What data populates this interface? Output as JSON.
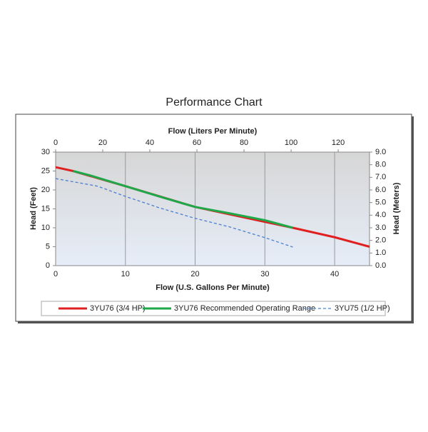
{
  "chart_data": {
    "type": "line",
    "title": "Performance Chart",
    "xlabel": "Flow (U.S. Gallons Per Minute)",
    "x2label": "Flow (Liters Per Minute)",
    "ylabel": "Head (Feet)",
    "y2label": "Head (Meters)",
    "xlim": [
      0,
      45
    ],
    "xticks": [
      0,
      10,
      20,
      30,
      40
    ],
    "x2lim": [
      0,
      133.3
    ],
    "x2ticks": [
      0,
      20,
      40,
      60,
      80,
      100,
      120
    ],
    "ylim": [
      0,
      30
    ],
    "yticks": [
      0,
      5,
      10,
      15,
      20,
      25,
      30
    ],
    "y2lim": [
      0,
      9
    ],
    "y2ticks": [
      {
        "value": 0,
        "label": "0.0"
      },
      {
        "value": 1,
        "label": "1.0"
      },
      {
        "value": 2,
        "label": "2.0"
      },
      {
        "value": 3,
        "label": "3.0"
      },
      {
        "value": 4,
        "label": "4.0"
      },
      {
        "value": 5,
        "label": "5.0"
      },
      {
        "value": 6,
        "label": "6.0"
      },
      {
        "value": 7,
        "label": "7.0"
      },
      {
        "value": 8,
        "label": "8.0"
      },
      {
        "value": 9,
        "label": "9.0"
      }
    ],
    "grid": true,
    "series": [
      {
        "name": "3YU76 (3/4 HP)",
        "color": "#e02020",
        "style": "solid",
        "x": [
          0,
          2.5,
          10,
          20,
          34,
          40,
          45
        ],
        "values": [
          26,
          25,
          21,
          15.5,
          10,
          7.5,
          5
        ]
      },
      {
        "name": "3YU76 Recommended Operating Range",
        "color": "#1fa84a",
        "style": "solid",
        "x": [
          2.5,
          5,
          10,
          15,
          20,
          25,
          30,
          34
        ],
        "values": [
          25,
          23.8,
          21,
          18.2,
          15.5,
          13.8,
          12,
          10
        ]
      },
      {
        "name": "3YU75 (1/2 HP)",
        "color": "#4a7fd0",
        "style": "dashed",
        "x": [
          0,
          3,
          6,
          10,
          15,
          20,
          25,
          30,
          34
        ],
        "values": [
          23,
          22,
          21,
          18.3,
          15.2,
          12.5,
          10.2,
          7.4,
          4.9
        ]
      }
    ]
  }
}
